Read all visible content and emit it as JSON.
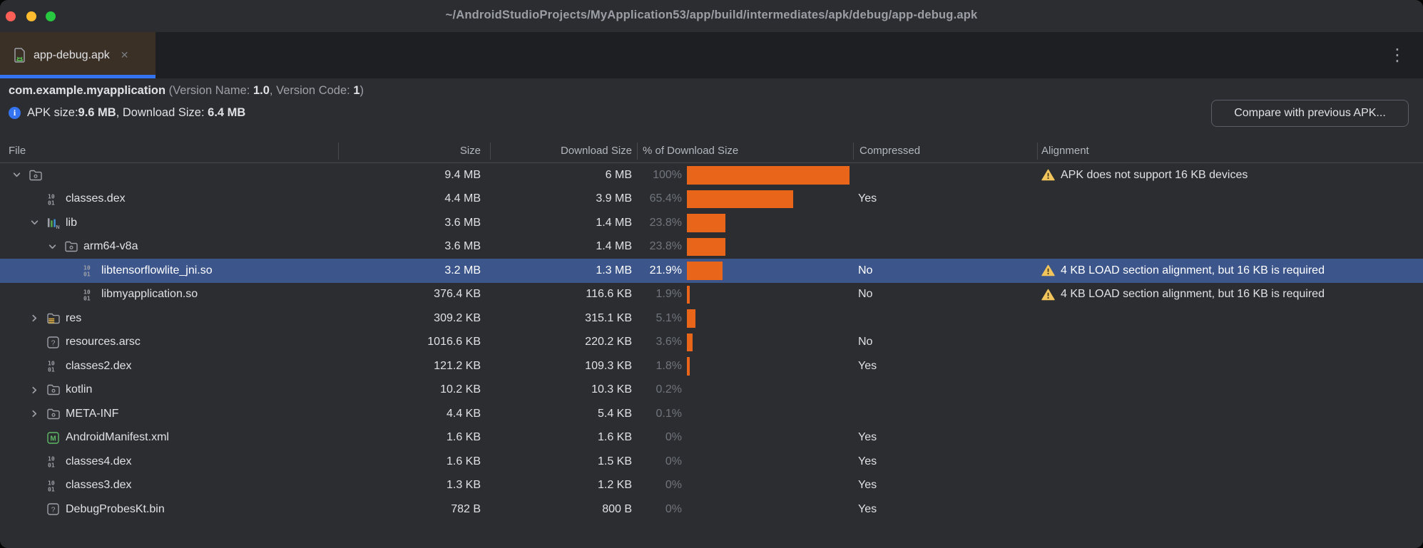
{
  "window": {
    "title": "~/AndroidStudioProjects/MyApplication53/app/build/intermediates/apk/debug/app-debug.apk"
  },
  "tab_bar": {
    "active_tab": {
      "label": "app-debug.apk",
      "close_glyph": "✕"
    },
    "overflow_menu_glyph": "⋮"
  },
  "summary": {
    "package_name": "com.example.myapplication",
    "version_name_label": "(Version Name: ",
    "version_name": "1.0",
    "version_code_label": ", Version Code: ",
    "version_code": "1",
    "version_suffix": ")",
    "info_icon_glyph": "i",
    "apk_size_label": "APK size: ",
    "apk_size": "9.6 MB",
    "download_size_label": ", Download Size: ",
    "download_size": "6.4 MB",
    "compare_button_label": "Compare with previous APK..."
  },
  "table": {
    "columns": [
      "File",
      "Size",
      "Download Size",
      "% of Download Size",
      "Compressed",
      "Alignment"
    ],
    "rows": [
      {
        "name": "",
        "icon": "folder",
        "level": 0,
        "chevron": "down",
        "selected": false,
        "size": "9.4 MB",
        "download_size": "6 MB",
        "percent": "100%",
        "percent_value": 100,
        "compressed": "",
        "alignment_warning": "APK does not support 16 KB devices"
      },
      {
        "name": "classes.dex",
        "icon": "dex",
        "level": 1,
        "chevron": "",
        "selected": false,
        "size": "4.4 MB",
        "download_size": "3.9 MB",
        "percent": "65.4%",
        "percent_value": 65.4,
        "compressed": "Yes",
        "alignment_warning": ""
      },
      {
        "name": "lib",
        "icon": "lib",
        "level": 1,
        "chevron": "down",
        "selected": false,
        "size": "3.6 MB",
        "download_size": "1.4 MB",
        "percent": "23.8%",
        "percent_value": 23.8,
        "compressed": "",
        "alignment_warning": ""
      },
      {
        "name": "arm64-v8a",
        "icon": "folder",
        "level": 2,
        "chevron": "down",
        "selected": false,
        "size": "3.6 MB",
        "download_size": "1.4 MB",
        "percent": "23.8%",
        "percent_value": 23.8,
        "compressed": "",
        "alignment_warning": ""
      },
      {
        "name": "libtensorflowlite_jni.so",
        "icon": "dex",
        "level": 3,
        "chevron": "",
        "selected": true,
        "size": "3.2 MB",
        "download_size": "1.3 MB",
        "percent": "21.9%",
        "percent_value": 21.9,
        "compressed": "No",
        "alignment_warning": "4 KB LOAD section alignment, but 16 KB is required"
      },
      {
        "name": "libmyapplication.so",
        "icon": "dex",
        "level": 3,
        "chevron": "",
        "selected": false,
        "size": "376.4 KB",
        "download_size": "116.6 KB",
        "percent": "1.9%",
        "percent_value": 1.9,
        "compressed": "No",
        "alignment_warning": "4 KB LOAD section alignment, but 16 KB is required"
      },
      {
        "name": "res",
        "icon": "folder-res",
        "level": 1,
        "chevron": "right",
        "selected": false,
        "size": "309.2 KB",
        "download_size": "315.1 KB",
        "percent": "5.1%",
        "percent_value": 5.1,
        "compressed": "",
        "alignment_warning": ""
      },
      {
        "name": "resources.arsc",
        "icon": "unknown",
        "level": 1,
        "chevron": "",
        "selected": false,
        "size": "1016.6 KB",
        "download_size": "220.2 KB",
        "percent": "3.6%",
        "percent_value": 3.6,
        "compressed": "No",
        "alignment_warning": ""
      },
      {
        "name": "classes2.dex",
        "icon": "dex",
        "level": 1,
        "chevron": "",
        "selected": false,
        "size": "121.2 KB",
        "download_size": "109.3 KB",
        "percent": "1.8%",
        "percent_value": 1.8,
        "compressed": "Yes",
        "alignment_warning": ""
      },
      {
        "name": "kotlin",
        "icon": "folder",
        "level": 1,
        "chevron": "right",
        "selected": false,
        "size": "10.2 KB",
        "download_size": "10.3 KB",
        "percent": "0.2%",
        "percent_value": 0.2,
        "compressed": "",
        "alignment_warning": ""
      },
      {
        "name": "META-INF",
        "icon": "folder",
        "level": 1,
        "chevron": "right",
        "selected": false,
        "size": "4.4 KB",
        "download_size": "5.4 KB",
        "percent": "0.1%",
        "percent_value": 0.1,
        "compressed": "",
        "alignment_warning": ""
      },
      {
        "name": "AndroidManifest.xml",
        "icon": "manifest",
        "level": 1,
        "chevron": "",
        "selected": false,
        "size": "1.6 KB",
        "download_size": "1.6 KB",
        "percent": "0%",
        "percent_value": 0,
        "compressed": "Yes",
        "alignment_warning": ""
      },
      {
        "name": "classes4.dex",
        "icon": "dex",
        "level": 1,
        "chevron": "",
        "selected": false,
        "size": "1.6 KB",
        "download_size": "1.5 KB",
        "percent": "0%",
        "percent_value": 0,
        "compressed": "Yes",
        "alignment_warning": ""
      },
      {
        "name": "classes3.dex",
        "icon": "dex",
        "level": 1,
        "chevron": "",
        "selected": false,
        "size": "1.3 KB",
        "download_size": "1.2 KB",
        "percent": "0%",
        "percent_value": 0,
        "compressed": "Yes",
        "alignment_warning": ""
      },
      {
        "name": "DebugProbesKt.bin",
        "icon": "unknown",
        "level": 1,
        "chevron": "",
        "selected": false,
        "size": "782 B",
        "download_size": "800 B",
        "percent": "0%",
        "percent_value": 0,
        "compressed": "Yes",
        "alignment_warning": ""
      }
    ]
  },
  "colors": {
    "accent_blue": "#3574F0",
    "bar_orange": "#E8651A",
    "selection_blue": "#3C568C",
    "warning_yellow": "#F2C55C",
    "active_tab_brown": "#3B3026"
  }
}
